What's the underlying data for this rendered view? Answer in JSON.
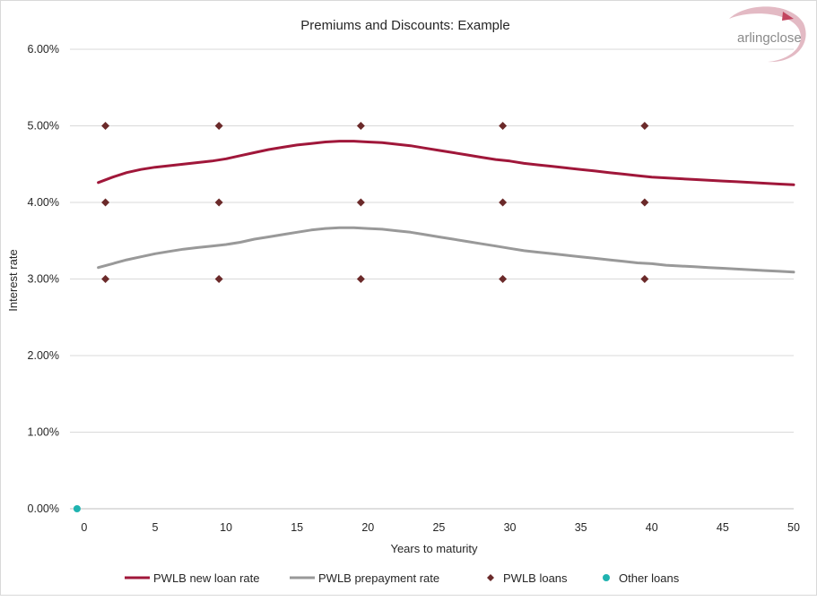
{
  "logo": {
    "text": "arlingclose"
  },
  "chart_data": {
    "type": "line",
    "title": "Premiums and Discounts: Example",
    "xlabel": "Years to maturity",
    "ylabel": "Interest rate",
    "xlim": [
      -1,
      50
    ],
    "ylim": [
      0,
      0.06
    ],
    "x_ticks": [
      0,
      5,
      10,
      15,
      20,
      25,
      30,
      35,
      40,
      45,
      50
    ],
    "x_tick_labels": [
      "0",
      "5",
      "10",
      "15",
      "20",
      "25",
      "30",
      "35",
      "40",
      "45",
      "50"
    ],
    "y_ticks": [
      0,
      0.01,
      0.02,
      0.03,
      0.04,
      0.05,
      0.06
    ],
    "y_tick_labels": [
      "0.00%",
      "1.00%",
      "2.00%",
      "3.00%",
      "4.00%",
      "5.00%",
      "6.00%"
    ],
    "grid": "horizontal",
    "legend_position": "bottom",
    "series": [
      {
        "name": "PWLB new loan rate",
        "kind": "line",
        "color": "#a0173a",
        "x": [
          1,
          2,
          3,
          4,
          5,
          6,
          7,
          8,
          9,
          10,
          11,
          12,
          13,
          14,
          15,
          16,
          17,
          18,
          19,
          20,
          21,
          22,
          23,
          24,
          25,
          26,
          27,
          28,
          29,
          30,
          31,
          32,
          33,
          34,
          35,
          36,
          37,
          38,
          39,
          40,
          41,
          42,
          43,
          44,
          45,
          46,
          47,
          48,
          49,
          50
        ],
        "y": [
          0.0426,
          0.0433,
          0.0439,
          0.0443,
          0.0446,
          0.0448,
          0.045,
          0.0452,
          0.0454,
          0.0457,
          0.0461,
          0.0465,
          0.0469,
          0.0472,
          0.0475,
          0.0477,
          0.0479,
          0.048,
          0.048,
          0.0479,
          0.0478,
          0.0476,
          0.0474,
          0.0471,
          0.0468,
          0.0465,
          0.0462,
          0.0459,
          0.0456,
          0.0454,
          0.0451,
          0.0449,
          0.0447,
          0.0445,
          0.0443,
          0.0441,
          0.0439,
          0.0437,
          0.0435,
          0.0433,
          0.0432,
          0.0431,
          0.043,
          0.0429,
          0.0428,
          0.0427,
          0.0426,
          0.0425,
          0.0424,
          0.0423
        ]
      },
      {
        "name": "PWLB prepayment rate",
        "kind": "line",
        "color": "#999999",
        "x": [
          1,
          2,
          3,
          4,
          5,
          6,
          7,
          8,
          9,
          10,
          11,
          12,
          13,
          14,
          15,
          16,
          17,
          18,
          19,
          20,
          21,
          22,
          23,
          24,
          25,
          26,
          27,
          28,
          29,
          30,
          31,
          32,
          33,
          34,
          35,
          36,
          37,
          38,
          39,
          40,
          41,
          42,
          43,
          44,
          45,
          46,
          47,
          48,
          49,
          50
        ],
        "y": [
          0.0315,
          0.032,
          0.0325,
          0.0329,
          0.0333,
          0.0336,
          0.0339,
          0.0341,
          0.0343,
          0.0345,
          0.0348,
          0.0352,
          0.0355,
          0.0358,
          0.0361,
          0.0364,
          0.0366,
          0.0367,
          0.0367,
          0.0366,
          0.0365,
          0.0363,
          0.0361,
          0.0358,
          0.0355,
          0.0352,
          0.0349,
          0.0346,
          0.0343,
          0.034,
          0.0337,
          0.0335,
          0.0333,
          0.0331,
          0.0329,
          0.0327,
          0.0325,
          0.0323,
          0.0321,
          0.032,
          0.0318,
          0.0317,
          0.0316,
          0.0315,
          0.0314,
          0.0313,
          0.0312,
          0.0311,
          0.031,
          0.0309
        ]
      },
      {
        "name": "PWLB loans",
        "kind": "scatter",
        "marker": "diamond",
        "color": "#6b2a2a",
        "points": [
          [
            1.5,
            0.05
          ],
          [
            9.5,
            0.05
          ],
          [
            19.5,
            0.05
          ],
          [
            29.5,
            0.05
          ],
          [
            39.5,
            0.05
          ],
          [
            1.5,
            0.04
          ],
          [
            9.5,
            0.04
          ],
          [
            19.5,
            0.04
          ],
          [
            29.5,
            0.04
          ],
          [
            39.5,
            0.04
          ],
          [
            1.5,
            0.03
          ],
          [
            9.5,
            0.03
          ],
          [
            19.5,
            0.03
          ],
          [
            29.5,
            0.03
          ],
          [
            39.5,
            0.03
          ]
        ]
      },
      {
        "name": "Other loans",
        "kind": "scatter",
        "marker": "circle",
        "color": "#1fb3b0",
        "points": [
          [
            -0.5,
            0.0
          ]
        ]
      }
    ]
  }
}
